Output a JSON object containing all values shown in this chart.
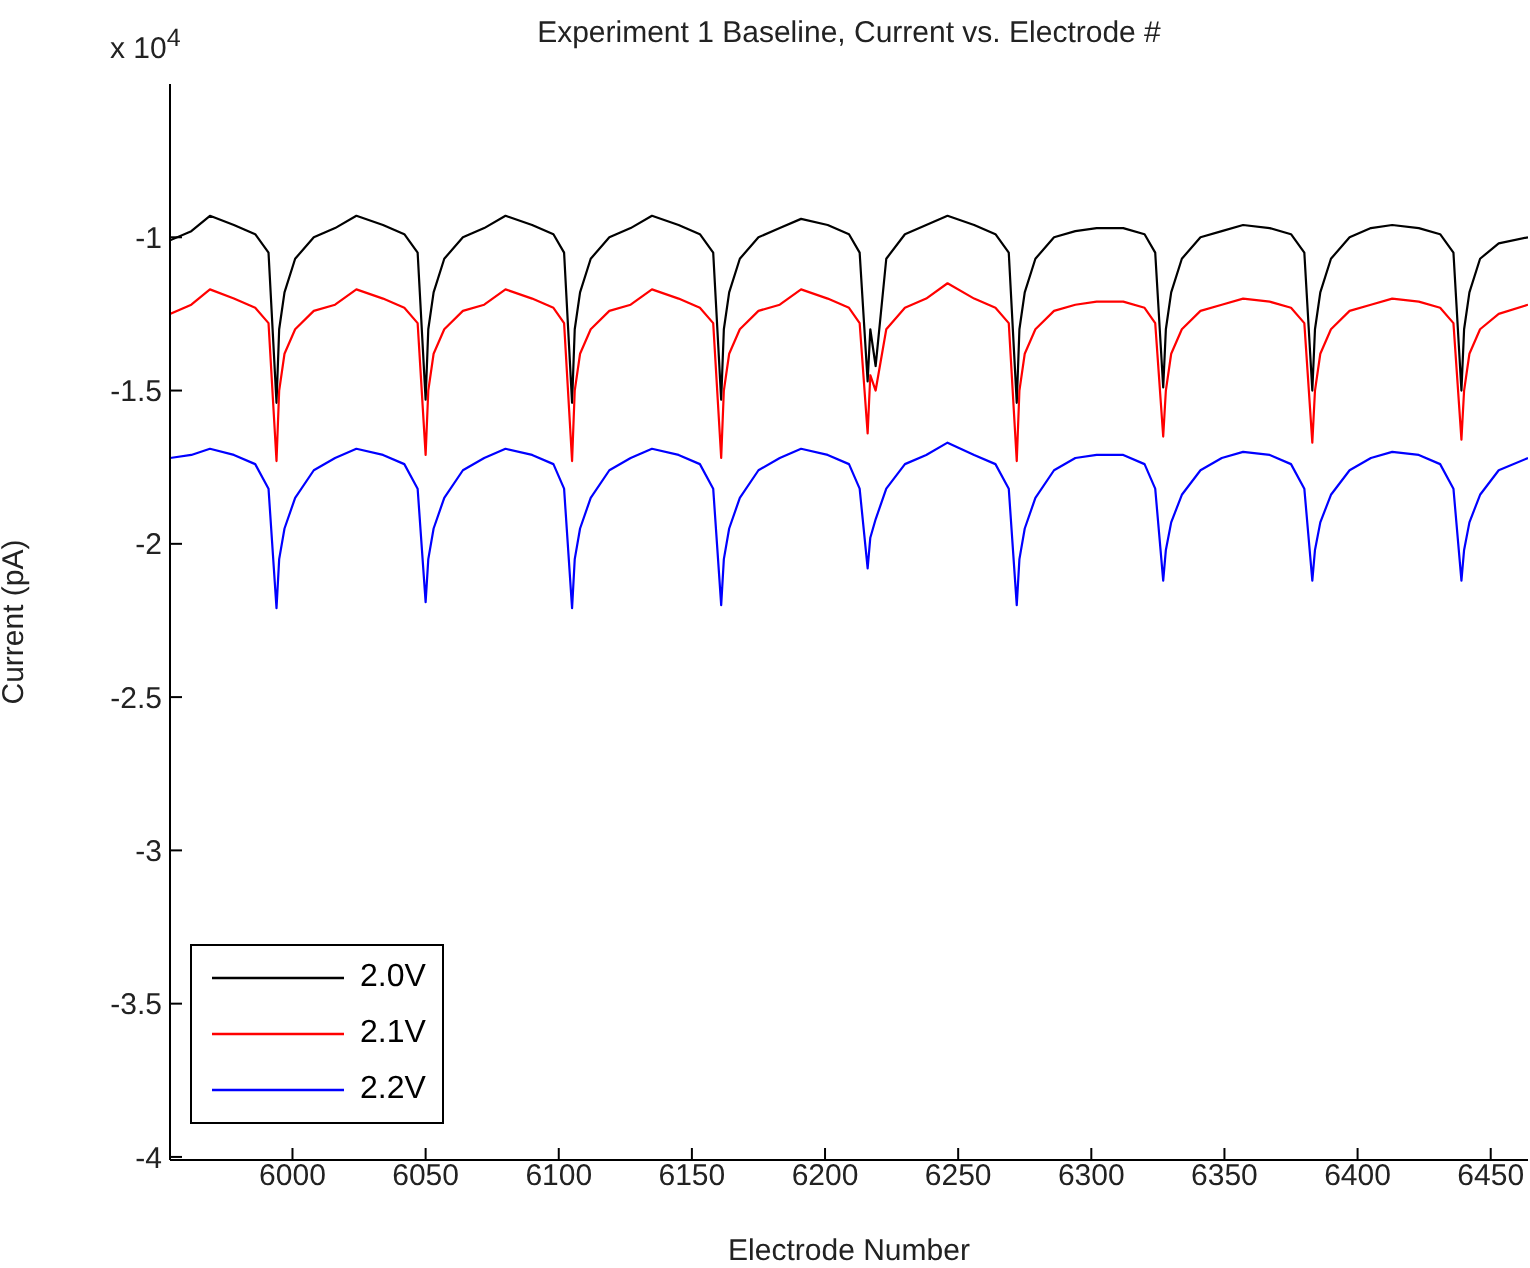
{
  "chart_data": {
    "type": "line",
    "title": "Experiment 1 Baseline, Current vs. Electrode #",
    "xlabel": "Electrode Number",
    "ylabel": "Current (pA)",
    "annotations": [
      "x 10$^{4}$"
    ],
    "xlim": [
      5954,
      6464
    ],
    "xticks": [
      6000,
      6050,
      6100,
      6150,
      6200,
      6250,
      6300,
      6350,
      6400,
      6450
    ],
    "ylim": [
      -4.01,
      -0.5
    ],
    "yticks": [
      -4,
      -3.5,
      -3,
      -2.5,
      -2,
      -1.5,
      -1
    ],
    "grid": false,
    "legend": "bottom left",
    "line_style": "solid",
    "x": [
      5954,
      5962,
      5969,
      5978,
      5986,
      5991,
      5994,
      5995,
      5997,
      6001,
      6008,
      6016,
      6024,
      6034,
      6042,
      6047,
      6050,
      6051,
      6053,
      6057,
      6064,
      6072,
      6080,
      6090,
      6098,
      6102,
      6105,
      6106,
      6108,
      6112,
      6119,
      6127,
      6135,
      6145,
      6153,
      6158,
      6161,
      6162,
      6164,
      6168,
      6175,
      6183,
      6191,
      6201,
      6209,
      6213,
      6216,
      6217,
      6219,
      6223,
      6230,
      6238,
      6246,
      6256,
      6264,
      6269,
      6272,
      6273,
      6275,
      6279,
      6286,
      6294,
      6302,
      6312,
      6320,
      6324,
      6327,
      6328,
      6330,
      6334,
      6341,
      6349,
      6357,
      6367,
      6375,
      6380,
      6383,
      6384,
      6386,
      6390,
      6397,
      6405,
      6413,
      6423,
      6431,
      6436,
      6439,
      6440,
      6442,
      6446,
      6453,
      6464
    ],
    "series": [
      {
        "name": "2.0V",
        "color": "#000000",
        "values": [
          -1.01,
          -0.98,
          -0.93,
          -0.96,
          -0.99,
          -1.05,
          -1.54,
          -1.3,
          -1.18,
          -1.07,
          -1.0,
          -0.97,
          -0.93,
          -0.96,
          -0.99,
          -1.05,
          -1.53,
          -1.3,
          -1.18,
          -1.07,
          -1.0,
          -0.97,
          -0.93,
          -0.96,
          -0.99,
          -1.05,
          -1.54,
          -1.3,
          -1.18,
          -1.07,
          -1.0,
          -0.97,
          -0.93,
          -0.96,
          -0.99,
          -1.05,
          -1.53,
          -1.3,
          -1.18,
          -1.07,
          -1.0,
          -0.97,
          -0.94,
          -0.96,
          -0.99,
          -1.05,
          -1.47,
          -1.3,
          -1.42,
          -1.07,
          -0.99,
          -0.96,
          -0.93,
          -0.96,
          -0.99,
          -1.05,
          -1.54,
          -1.3,
          -1.18,
          -1.07,
          -1.0,
          -0.98,
          -0.97,
          -0.97,
          -0.99,
          -1.05,
          -1.49,
          -1.3,
          -1.18,
          -1.07,
          -1.0,
          -0.98,
          -0.96,
          -0.97,
          -0.99,
          -1.05,
          -1.5,
          -1.3,
          -1.18,
          -1.07,
          -1.0,
          -0.97,
          -0.96,
          -0.97,
          -0.99,
          -1.05,
          -1.5,
          -1.3,
          -1.18,
          -1.07,
          -1.02,
          -1.0
        ]
      },
      {
        "name": "2.1V",
        "color": "#ff0000",
        "values": [
          -1.25,
          -1.22,
          -1.17,
          -1.2,
          -1.23,
          -1.28,
          -1.73,
          -1.5,
          -1.38,
          -1.3,
          -1.24,
          -1.22,
          -1.17,
          -1.2,
          -1.23,
          -1.28,
          -1.71,
          -1.5,
          -1.38,
          -1.3,
          -1.24,
          -1.22,
          -1.17,
          -1.2,
          -1.23,
          -1.28,
          -1.73,
          -1.5,
          -1.38,
          -1.3,
          -1.24,
          -1.22,
          -1.17,
          -1.2,
          -1.23,
          -1.28,
          -1.72,
          -1.5,
          -1.38,
          -1.3,
          -1.24,
          -1.22,
          -1.17,
          -1.2,
          -1.23,
          -1.28,
          -1.64,
          -1.45,
          -1.5,
          -1.3,
          -1.23,
          -1.2,
          -1.15,
          -1.2,
          -1.23,
          -1.28,
          -1.73,
          -1.5,
          -1.38,
          -1.3,
          -1.24,
          -1.22,
          -1.21,
          -1.21,
          -1.23,
          -1.28,
          -1.65,
          -1.5,
          -1.38,
          -1.3,
          -1.24,
          -1.22,
          -1.2,
          -1.21,
          -1.23,
          -1.28,
          -1.67,
          -1.5,
          -1.38,
          -1.3,
          -1.24,
          -1.22,
          -1.2,
          -1.21,
          -1.23,
          -1.28,
          -1.66,
          -1.5,
          -1.38,
          -1.3,
          -1.25,
          -1.22
        ]
      },
      {
        "name": "2.2V",
        "color": "#0000ff",
        "values": [
          -1.72,
          -1.71,
          -1.69,
          -1.71,
          -1.74,
          -1.82,
          -2.21,
          -2.05,
          -1.95,
          -1.85,
          -1.76,
          -1.72,
          -1.69,
          -1.71,
          -1.74,
          -1.82,
          -2.19,
          -2.05,
          -1.95,
          -1.85,
          -1.76,
          -1.72,
          -1.69,
          -1.71,
          -1.74,
          -1.82,
          -2.21,
          -2.05,
          -1.95,
          -1.85,
          -1.76,
          -1.72,
          -1.69,
          -1.71,
          -1.74,
          -1.82,
          -2.2,
          -2.05,
          -1.95,
          -1.85,
          -1.76,
          -1.72,
          -1.69,
          -1.71,
          -1.74,
          -1.82,
          -2.08,
          -1.98,
          -1.92,
          -1.82,
          -1.74,
          -1.71,
          -1.67,
          -1.71,
          -1.74,
          -1.82,
          -2.2,
          -2.05,
          -1.95,
          -1.85,
          -1.76,
          -1.72,
          -1.71,
          -1.71,
          -1.74,
          -1.82,
          -2.12,
          -2.02,
          -1.93,
          -1.84,
          -1.76,
          -1.72,
          -1.7,
          -1.71,
          -1.74,
          -1.82,
          -2.12,
          -2.02,
          -1.93,
          -1.84,
          -1.76,
          -1.72,
          -1.7,
          -1.71,
          -1.74,
          -1.82,
          -2.12,
          -2.02,
          -1.93,
          -1.84,
          -1.76,
          -1.72
        ]
      }
    ]
  }
}
